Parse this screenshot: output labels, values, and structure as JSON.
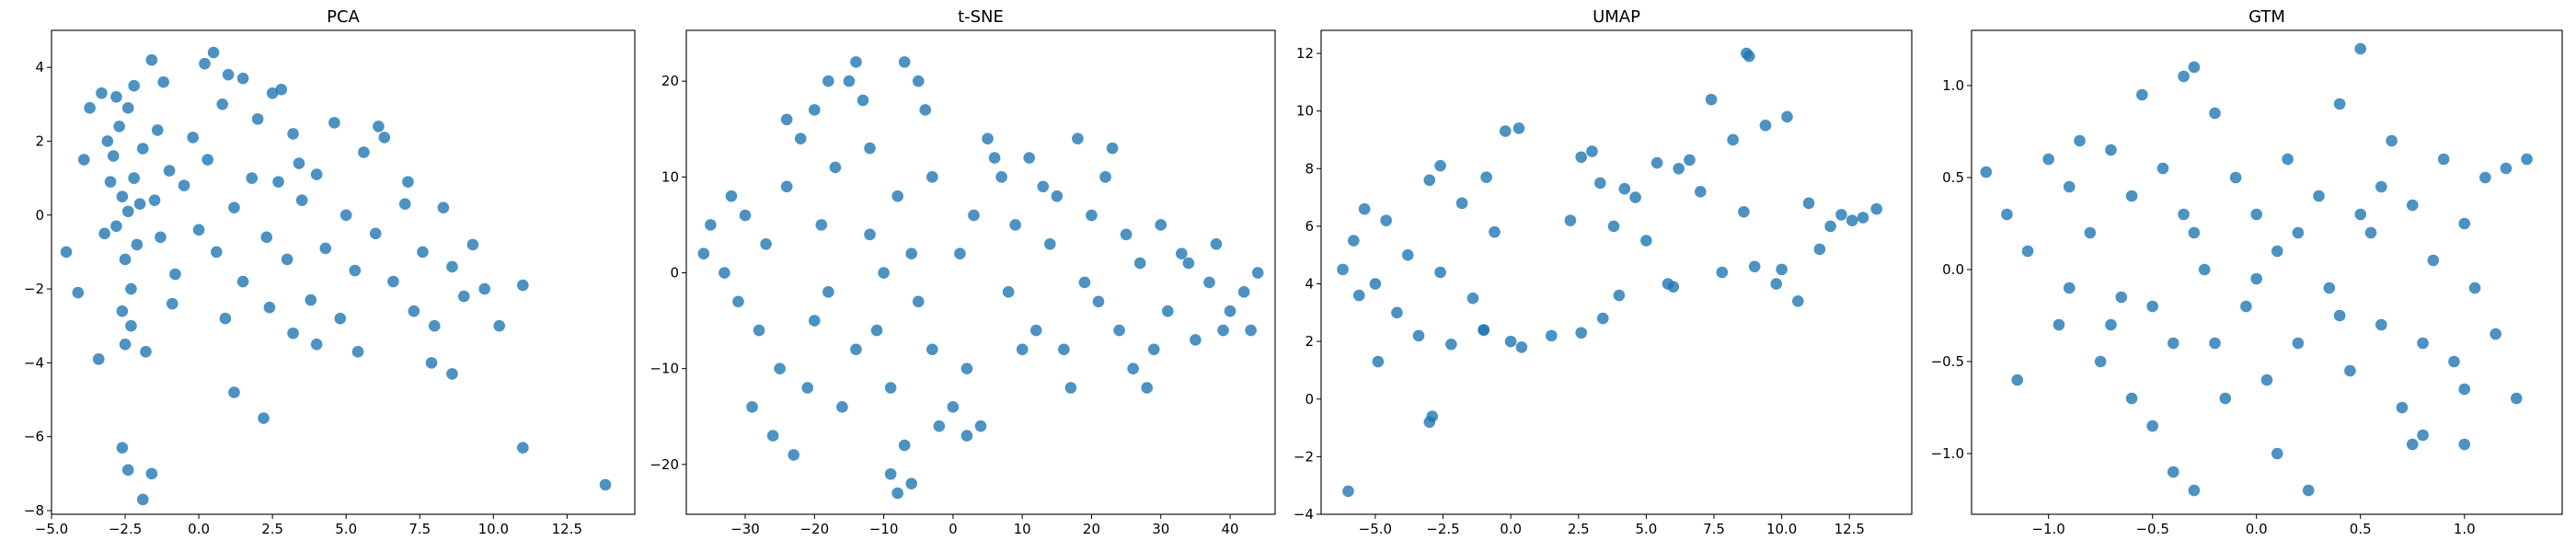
{
  "marker_color": "#1f77b4",
  "chart_data": [
    {
      "type": "scatter",
      "title": "PCA",
      "xlabel": "",
      "ylabel": "",
      "xlim": [
        -5.0,
        14.8
      ],
      "ylim": [
        -8.1,
        5.0
      ],
      "xticks": [
        -5.0,
        -2.5,
        0.0,
        2.5,
        5.0,
        7.5,
        10.0,
        12.5
      ],
      "xtick_labels": [
        "−5.0",
        "−2.5",
        "0.0",
        "2.5",
        "5.0",
        "7.5",
        "10.0",
        "12.5"
      ],
      "yticks": [
        -8,
        -6,
        -4,
        -2,
        0,
        2,
        4
      ],
      "ytick_labels": [
        "−8",
        "−6",
        "−4",
        "−2",
        "0",
        "2",
        "4"
      ],
      "grid": false,
      "points": [
        [
          -2.6,
          0.5
        ],
        [
          -2.4,
          0.1
        ],
        [
          -2.8,
          -0.3
        ],
        [
          -2.2,
          1.0
        ],
        [
          -2.5,
          -1.2
        ],
        [
          -2.9,
          1.6
        ],
        [
          -2.3,
          -2.0
        ],
        [
          -2.7,
          2.4
        ],
        [
          -2.1,
          -0.8
        ],
        [
          -3.0,
          0.9
        ],
        [
          -2.4,
          2.9
        ],
        [
          -2.6,
          -2.6
        ],
        [
          -2.0,
          0.3
        ],
        [
          -3.2,
          -0.5
        ],
        [
          -2.8,
          3.2
        ],
        [
          -2.3,
          -3.0
        ],
        [
          -1.9,
          1.8
        ],
        [
          -3.1,
          2.0
        ],
        [
          -2.5,
          -3.5
        ],
        [
          -2.2,
          3.5
        ],
        [
          -1.5,
          0.4
        ],
        [
          -1.3,
          -0.6
        ],
        [
          -1.0,
          1.2
        ],
        [
          -0.8,
          -1.6
        ],
        [
          -0.5,
          0.8
        ],
        [
          -0.2,
          2.1
        ],
        [
          0.0,
          -0.4
        ],
        [
          0.3,
          1.5
        ],
        [
          0.5,
          4.4
        ],
        [
          0.2,
          4.1
        ],
        [
          -1.6,
          4.2
        ],
        [
          -1.2,
          3.6
        ],
        [
          0.8,
          3.0
        ],
        [
          1.2,
          0.2
        ],
        [
          1.5,
          -1.8
        ],
        [
          1.8,
          1.0
        ],
        [
          2.0,
          2.6
        ],
        [
          2.3,
          -0.6
        ],
        [
          2.5,
          3.3
        ],
        [
          2.7,
          0.9
        ],
        [
          3.0,
          -1.2
        ],
        [
          3.2,
          2.2
        ],
        [
          3.5,
          0.4
        ],
        [
          3.8,
          -2.3
        ],
        [
          4.0,
          1.1
        ],
        [
          4.3,
          -0.9
        ],
        [
          4.6,
          2.5
        ],
        [
          5.0,
          0.0
        ],
        [
          5.3,
          -1.5
        ],
        [
          5.6,
          1.7
        ],
        [
          6.0,
          -0.5
        ],
        [
          6.3,
          2.1
        ],
        [
          6.6,
          -1.8
        ],
        [
          7.0,
          0.3
        ],
        [
          7.3,
          -2.6
        ],
        [
          7.6,
          -1.0
        ],
        [
          8.0,
          -3.0
        ],
        [
          8.3,
          0.2
        ],
        [
          8.6,
          -1.4
        ],
        [
          9.0,
          -2.2
        ],
        [
          9.3,
          -0.8
        ],
        [
          9.7,
          -2.0
        ],
        [
          10.2,
          -3.0
        ],
        [
          11.0,
          -1.9
        ],
        [
          11.0,
          -6.3
        ],
        [
          13.8,
          -7.3
        ],
        [
          -2.6,
          -6.3
        ],
        [
          -2.4,
          -6.9
        ],
        [
          -1.9,
          -7.7
        ],
        [
          -1.6,
          -7.0
        ],
        [
          1.2,
          -4.8
        ],
        [
          2.2,
          -5.5
        ],
        [
          4.0,
          -3.5
        ],
        [
          5.4,
          -3.7
        ],
        [
          3.2,
          -3.2
        ],
        [
          -1.8,
          -3.7
        ],
        [
          -3.4,
          -3.9
        ],
        [
          -4.1,
          -2.1
        ],
        [
          -4.5,
          -1.0
        ],
        [
          -3.9,
          1.5
        ],
        [
          -3.7,
          2.9
        ],
        [
          -3.3,
          3.3
        ],
        [
          1.0,
          3.8
        ],
        [
          1.5,
          3.7
        ],
        [
          2.8,
          3.4
        ],
        [
          0.9,
          -2.8
        ],
        [
          2.4,
          -2.5
        ],
        [
          6.1,
          2.4
        ],
        [
          7.9,
          -4.0
        ],
        [
          8.6,
          -4.3
        ],
        [
          7.1,
          0.9
        ],
        [
          3.4,
          1.4
        ],
        [
          0.6,
          -1.0
        ],
        [
          -0.9,
          -2.4
        ],
        [
          -1.4,
          2.3
        ],
        [
          4.8,
          -2.8
        ]
      ]
    },
    {
      "type": "scatter",
      "title": "t-SNE",
      "xlabel": "",
      "ylabel": "",
      "xlim": [
        -38.5,
        46.5
      ],
      "ylim": [
        -25.2,
        25.3
      ],
      "xticks": [
        -30,
        -20,
        -10,
        0,
        10,
        20,
        30,
        40
      ],
      "xtick_labels": [
        "−30",
        "−20",
        "−10",
        "0",
        "10",
        "20",
        "30",
        "40"
      ],
      "yticks": [
        -20,
        -10,
        0,
        10,
        20
      ],
      "ytick_labels": [
        "−20",
        "−10",
        "0",
        "10",
        "20"
      ],
      "grid": false,
      "points": [
        [
          -35,
          5
        ],
        [
          -33,
          0
        ],
        [
          -31,
          -3
        ],
        [
          -36,
          2
        ],
        [
          -30,
          6
        ],
        [
          -28,
          -6
        ],
        [
          -27,
          3
        ],
        [
          -25,
          -10
        ],
        [
          -24,
          9
        ],
        [
          -22,
          14
        ],
        [
          -20,
          17
        ],
        [
          -21,
          -12
        ],
        [
          -19,
          5
        ],
        [
          -18,
          -2
        ],
        [
          -17,
          11
        ],
        [
          -16,
          -14
        ],
        [
          -15,
          20
        ],
        [
          -14,
          22
        ],
        [
          -13,
          18
        ],
        [
          -12,
          13
        ],
        [
          -11,
          -6
        ],
        [
          -10,
          0
        ],
        [
          -9,
          -12
        ],
        [
          -8,
          8
        ],
        [
          -7,
          -18
        ],
        [
          -9,
          -21
        ],
        [
          -8,
          -23
        ],
        [
          -6,
          -22
        ],
        [
          -7,
          22
        ],
        [
          -5,
          20
        ],
        [
          -4,
          17
        ],
        [
          -3,
          10
        ],
        [
          -5,
          -3
        ],
        [
          -2,
          -16
        ],
        [
          0,
          -14
        ],
        [
          2,
          -17
        ],
        [
          4,
          -16
        ],
        [
          1,
          2
        ],
        [
          3,
          6
        ],
        [
          5,
          14
        ],
        [
          7,
          10
        ],
        [
          8,
          -2
        ],
        [
          9,
          5
        ],
        [
          11,
          12
        ],
        [
          12,
          -6
        ],
        [
          14,
          3
        ],
        [
          15,
          8
        ],
        [
          16,
          -8
        ],
        [
          17,
          -12
        ],
        [
          18,
          14
        ],
        [
          20,
          6
        ],
        [
          21,
          -3
        ],
        [
          22,
          10
        ],
        [
          24,
          -6
        ],
        [
          25,
          4
        ],
        [
          26,
          -10
        ],
        [
          27,
          1
        ],
        [
          28,
          -12
        ],
        [
          30,
          5
        ],
        [
          31,
          -4
        ],
        [
          33,
          2
        ],
        [
          35,
          -7
        ],
        [
          37,
          -1
        ],
        [
          38,
          3
        ],
        [
          40,
          -4
        ],
        [
          42,
          -2
        ],
        [
          43,
          -6
        ],
        [
          44,
          0
        ],
        [
          -29,
          -14
        ],
        [
          -26,
          -17
        ],
        [
          -23,
          -19
        ],
        [
          -32,
          8
        ],
        [
          -24,
          16
        ],
        [
          -18,
          20
        ],
        [
          -12,
          4
        ],
        [
          -14,
          -8
        ],
        [
          -3,
          -8
        ],
        [
          6,
          12
        ],
        [
          10,
          -8
        ],
        [
          19,
          -1
        ],
        [
          23,
          13
        ],
        [
          29,
          -8
        ],
        [
          34,
          1
        ],
        [
          39,
          -6
        ],
        [
          -6,
          2
        ],
        [
          13,
          9
        ],
        [
          -20,
          -5
        ],
        [
          2,
          -10
        ]
      ]
    },
    {
      "type": "scatter",
      "title": "UMAP",
      "xlabel": "",
      "ylabel": "",
      "xlim": [
        -7.0,
        14.8
      ],
      "ylim": [
        -4.0,
        12.8
      ],
      "xticks": [
        -5.0,
        -2.5,
        0.0,
        2.5,
        5.0,
        7.5,
        10.0,
        12.5
      ],
      "xtick_labels": [
        "−5.0",
        "−2.5",
        "0.0",
        "2.5",
        "5.0",
        "7.5",
        "10.0",
        "12.5"
      ],
      "yticks": [
        -4,
        -2,
        0,
        2,
        4,
        6,
        8,
        10,
        12
      ],
      "ytick_labels": [
        "−4",
        "−2",
        "0",
        "2",
        "4",
        "6",
        "8",
        "10",
        "12"
      ],
      "grid": false,
      "points": [
        [
          -6.0,
          -3.2
        ],
        [
          -2.9,
          -0.6
        ],
        [
          -3.0,
          -0.8
        ],
        [
          8.7,
          12.0
        ],
        [
          8.8,
          11.9
        ],
        [
          -6.2,
          4.5
        ],
        [
          -5.8,
          5.5
        ],
        [
          -5.4,
          6.6
        ],
        [
          -5.0,
          4.0
        ],
        [
          -4.6,
          6.2
        ],
        [
          -4.2,
          3.0
        ],
        [
          -3.8,
          5.0
        ],
        [
          -3.4,
          2.2
        ],
        [
          -3.0,
          7.6
        ],
        [
          -2.6,
          4.4
        ],
        [
          -2.2,
          1.9
        ],
        [
          -1.8,
          6.8
        ],
        [
          -1.4,
          3.5
        ],
        [
          -1.0,
          2.4
        ],
        [
          -0.6,
          5.8
        ],
        [
          -0.2,
          9.3
        ],
        [
          0.3,
          9.4
        ],
        [
          0.0,
          2.0
        ],
        [
          0.4,
          1.8
        ],
        [
          -0.9,
          7.7
        ],
        [
          2.2,
          6.2
        ],
        [
          2.6,
          8.4
        ],
        [
          3.0,
          8.6
        ],
        [
          3.3,
          7.5
        ],
        [
          3.8,
          6.0
        ],
        [
          4.2,
          7.3
        ],
        [
          4.6,
          7.0
        ],
        [
          5.0,
          5.5
        ],
        [
          5.4,
          8.2
        ],
        [
          5.8,
          4.0
        ],
        [
          6.2,
          8.0
        ],
        [
          6.6,
          8.3
        ],
        [
          7.0,
          7.2
        ],
        [
          7.4,
          10.4
        ],
        [
          7.8,
          4.4
        ],
        [
          8.2,
          9.0
        ],
        [
          8.6,
          6.5
        ],
        [
          9.0,
          4.6
        ],
        [
          9.4,
          9.5
        ],
        [
          9.8,
          4.0
        ],
        [
          10.2,
          9.8
        ],
        [
          10.6,
          3.4
        ],
        [
          11.0,
          6.8
        ],
        [
          11.4,
          5.2
        ],
        [
          11.8,
          6.0
        ],
        [
          12.2,
          6.4
        ],
        [
          12.6,
          6.2
        ],
        [
          13.0,
          6.3
        ],
        [
          13.5,
          6.6
        ],
        [
          -1.0,
          2.4
        ],
        [
          1.5,
          2.2
        ],
        [
          2.6,
          2.3
        ],
        [
          3.4,
          2.8
        ],
        [
          4.0,
          3.6
        ],
        [
          -4.9,
          1.3
        ],
        [
          -5.6,
          3.6
        ],
        [
          -2.6,
          8.1
        ],
        [
          6.0,
          3.9
        ],
        [
          10.0,
          4.5
        ]
      ]
    },
    {
      "type": "scatter",
      "title": "GTM",
      "xlabel": "",
      "ylabel": "",
      "xlim": [
        -1.37,
        1.47
      ],
      "ylim": [
        -1.33,
        1.3
      ],
      "xticks": [
        -1.0,
        -0.5,
        0.0,
        0.5,
        1.0
      ],
      "xtick_labels": [
        "−1.0",
        "−0.5",
        "0.0",
        "0.5",
        "1.0"
      ],
      "yticks": [
        -1.0,
        -0.5,
        0.0,
        0.5,
        1.0
      ],
      "ytick_labels": [
        "−1.0",
        "−0.5",
        "0.0",
        "0.5",
        "1.0"
      ],
      "grid": false,
      "points": [
        [
          -1.3,
          0.53
        ],
        [
          -1.2,
          0.3
        ],
        [
          -1.15,
          -0.6
        ],
        [
          -1.1,
          0.1
        ],
        [
          -1.0,
          0.6
        ],
        [
          -0.95,
          -0.3
        ],
        [
          -0.9,
          0.45
        ],
        [
          -0.85,
          0.7
        ],
        [
          -0.8,
          0.2
        ],
        [
          -0.75,
          -0.5
        ],
        [
          -0.7,
          0.65
        ],
        [
          -0.65,
          -0.15
        ],
        [
          -0.6,
          0.4
        ],
        [
          -0.55,
          0.95
        ],
        [
          -0.5,
          -0.85
        ],
        [
          -0.45,
          0.55
        ],
        [
          -0.4,
          -0.4
        ],
        [
          -0.35,
          0.3
        ],
        [
          -0.3,
          -1.2
        ],
        [
          -0.25,
          0.0
        ],
        [
          -0.2,
          0.85
        ],
        [
          -0.15,
          -0.7
        ],
        [
          -0.1,
          0.5
        ],
        [
          -0.05,
          -0.2
        ],
        [
          0.0,
          0.3
        ],
        [
          0.05,
          -0.6
        ],
        [
          0.1,
          0.1
        ],
        [
          0.15,
          0.6
        ],
        [
          0.2,
          -0.4
        ],
        [
          0.25,
          -1.2
        ],
        [
          0.3,
          0.4
        ],
        [
          0.35,
          -0.1
        ],
        [
          0.4,
          0.9
        ],
        [
          0.45,
          -0.55
        ],
        [
          0.5,
          1.2
        ],
        [
          0.55,
          0.2
        ],
        [
          0.6,
          -0.3
        ],
        [
          0.65,
          0.7
        ],
        [
          0.7,
          -0.75
        ],
        [
          0.75,
          0.35
        ],
        [
          0.8,
          -0.9
        ],
        [
          0.85,
          0.05
        ],
        [
          0.9,
          0.6
        ],
        [
          0.95,
          -0.5
        ],
        [
          1.0,
          0.25
        ],
        [
          1.05,
          -0.1
        ],
        [
          1.1,
          0.5
        ],
        [
          1.15,
          -0.35
        ],
        [
          1.2,
          0.55
        ],
        [
          1.25,
          -0.7
        ],
        [
          1.3,
          0.6
        ],
        [
          -0.5,
          -0.2
        ],
        [
          -0.3,
          0.2
        ],
        [
          -0.2,
          -0.4
        ],
        [
          0.0,
          -0.05
        ],
        [
          0.2,
          0.2
        ],
        [
          0.4,
          -0.25
        ],
        [
          0.6,
          0.45
        ],
        [
          0.8,
          -0.4
        ],
        [
          1.0,
          -0.65
        ],
        [
          -0.7,
          -0.3
        ],
        [
          -0.9,
          -0.1
        ],
        [
          -0.35,
          1.05
        ],
        [
          -0.3,
          1.1
        ],
        [
          0.5,
          0.3
        ],
        [
          -0.6,
          -0.7
        ],
        [
          -0.4,
          -1.1
        ],
        [
          0.1,
          -1.0
        ],
        [
          0.75,
          -0.95
        ],
        [
          1.0,
          -0.95
        ]
      ]
    }
  ]
}
